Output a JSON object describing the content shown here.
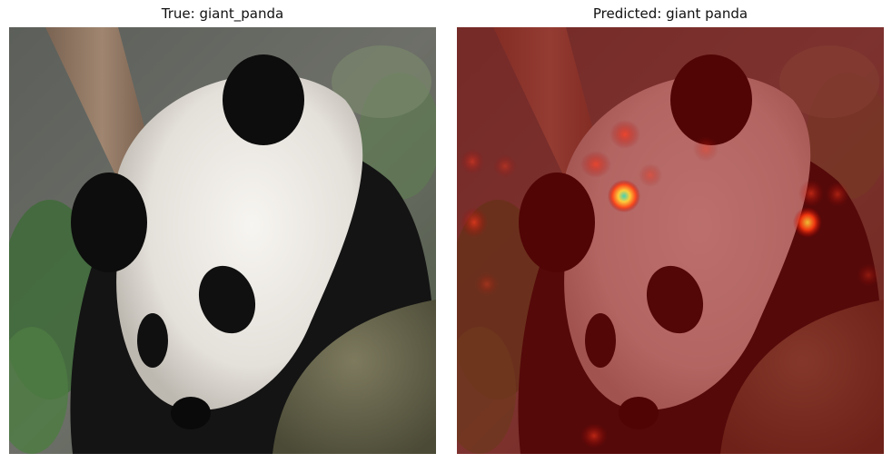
{
  "figure": {
    "left_panel": {
      "title": "True: giant_panda",
      "image_subject": "panda-photo"
    },
    "right_panel": {
      "title": "Predicted: giant panda",
      "image_subject": "panda-photo-with-attention-heatmap"
    },
    "colors": {
      "heatmap_base": "#8a0000",
      "heatmap_hot": "#ffd23a",
      "heatmap_peak": "#3fd6b5",
      "fur_white": "#eeebe6",
      "fur_black": "#111111",
      "foliage": "#3f6b3a",
      "branch": "#8c715c"
    }
  }
}
